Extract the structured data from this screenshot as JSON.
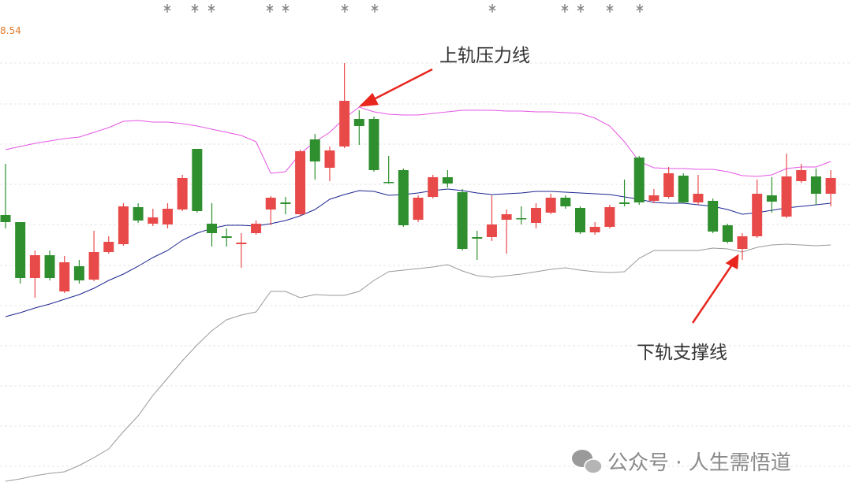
{
  "chart_data": {
    "type": "candlestick",
    "ylim": [
      7.947,
      8.54
    ],
    "yticks": [
      8.54
    ],
    "up_color": "#e84a4a",
    "down_color": "#2f8f2f",
    "open": [
      8.305,
      8.296,
      8.225,
      8.254,
      8.208,
      8.24,
      8.223,
      8.258,
      8.268,
      8.315,
      8.294,
      8.293,
      8.312,
      8.389,
      8.294,
      8.278,
      8.268,
      8.282,
      8.312,
      8.321,
      8.306,
      8.401,
      8.365,
      8.392,
      8.427,
      8.427,
      8.347,
      8.362,
      8.299,
      8.328,
      8.353,
      8.334,
      8.277,
      8.277,
      8.299,
      8.301,
      8.295,
      8.308,
      8.327,
      8.314,
      8.283,
      8.29,
      8.321,
      8.378,
      8.323,
      8.328,
      8.355,
      8.321,
      8.323,
      8.292,
      8.262,
      8.278,
      8.33,
      8.303,
      8.348,
      8.354,
      8.332
    ],
    "high": [
      8.37,
      8.296,
      8.26,
      8.26,
      8.253,
      8.248,
      8.285,
      8.278,
      8.32,
      8.32,
      8.313,
      8.32,
      8.356,
      8.389,
      8.32,
      8.288,
      8.282,
      8.298,
      8.329,
      8.328,
      8.388,
      8.408,
      8.392,
      8.498,
      8.438,
      8.43,
      8.38,
      8.364,
      8.33,
      8.356,
      8.362,
      8.338,
      8.285,
      8.33,
      8.312,
      8.316,
      8.32,
      8.332,
      8.33,
      8.316,
      8.296,
      8.318,
      8.35,
      8.38,
      8.338,
      8.366,
      8.358,
      8.356,
      8.326,
      8.294,
      8.282,
      8.35,
      8.353,
      8.383,
      8.37,
      8.364,
      8.362
    ],
    "low": [
      8.288,
      8.218,
      8.2,
      8.222,
      8.206,
      8.218,
      8.221,
      8.256,
      8.266,
      8.295,
      8.291,
      8.288,
      8.31,
      8.308,
      8.265,
      8.265,
      8.238,
      8.28,
      8.292,
      8.306,
      8.304,
      8.35,
      8.348,
      8.39,
      8.394,
      8.36,
      8.345,
      8.29,
      8.296,
      8.326,
      8.34,
      8.26,
      8.248,
      8.272,
      8.256,
      8.293,
      8.288,
      8.306,
      8.313,
      8.281,
      8.28,
      8.288,
      8.316,
      8.318,
      8.32,
      8.326,
      8.32,
      8.318,
      8.282,
      8.269,
      8.248,
      8.276,
      8.308,
      8.301,
      8.346,
      8.318,
      8.316
    ],
    "close": [
      8.296,
      8.225,
      8.254,
      8.225,
      8.245,
      8.222,
      8.258,
      8.271,
      8.316,
      8.298,
      8.302,
      8.313,
      8.352,
      8.31,
      8.282,
      8.276,
      8.27,
      8.294,
      8.327,
      8.319,
      8.386,
      8.373,
      8.387,
      8.45,
      8.418,
      8.362,
      8.346,
      8.292,
      8.327,
      8.353,
      8.345,
      8.262,
      8.275,
      8.293,
      8.306,
      8.3,
      8.314,
      8.327,
      8.316,
      8.283,
      8.29,
      8.315,
      8.319,
      8.321,
      8.33,
      8.358,
      8.321,
      8.332,
      8.284,
      8.271,
      8.278,
      8.332,
      8.322,
      8.354,
      8.362,
      8.332,
      8.352
    ],
    "series": [
      {
        "color": "#e455e4",
        "values": [
          8.388,
          8.392,
          8.396,
          8.399,
          8.402,
          8.404,
          8.41,
          8.416,
          8.424,
          8.425,
          8.423,
          8.423,
          8.421,
          8.418,
          8.414,
          8.41,
          8.406,
          8.398,
          8.358,
          8.36,
          8.383,
          8.398,
          8.41,
          8.428,
          8.442,
          8.436,
          8.433,
          8.432,
          8.432,
          8.434,
          8.436,
          8.438,
          8.438,
          8.438,
          8.437,
          8.437,
          8.436,
          8.436,
          8.435,
          8.434,
          8.428,
          8.418,
          8.398,
          8.373,
          8.365,
          8.364,
          8.364,
          8.363,
          8.363,
          8.36,
          8.355,
          8.354,
          8.356,
          8.364,
          8.366,
          8.366,
          8.373
        ]
      },
      {
        "color": "#1c2590",
        "values": [
          8.176,
          8.181,
          8.187,
          8.192,
          8.198,
          8.204,
          8.212,
          8.222,
          8.23,
          8.24,
          8.251,
          8.26,
          8.273,
          8.282,
          8.288,
          8.292,
          8.292,
          8.291,
          8.294,
          8.298,
          8.304,
          8.312,
          8.325,
          8.331,
          8.336,
          8.335,
          8.33,
          8.331,
          8.333,
          8.336,
          8.338,
          8.336,
          8.333,
          8.331,
          8.332,
          8.333,
          8.335,
          8.335,
          8.334,
          8.333,
          8.332,
          8.331,
          8.328,
          8.325,
          8.321,
          8.32,
          8.32,
          8.318,
          8.316,
          8.312,
          8.306,
          8.308,
          8.311,
          8.314,
          8.316,
          8.318,
          8.32
        ]
      },
      {
        "color": "#9a9a9a",
        "values": [
          7.967,
          7.97,
          7.974,
          7.977,
          7.979,
          7.987,
          7.997,
          8.008,
          8.03,
          8.05,
          8.076,
          8.098,
          8.12,
          8.14,
          8.158,
          8.172,
          8.178,
          8.182,
          8.208,
          8.208,
          8.2,
          8.204,
          8.203,
          8.203,
          8.208,
          8.222,
          8.233,
          8.235,
          8.237,
          8.239,
          8.242,
          8.234,
          8.228,
          8.226,
          8.228,
          8.23,
          8.233,
          8.236,
          8.238,
          8.235,
          8.233,
          8.232,
          8.233,
          8.25,
          8.26,
          8.26,
          8.26,
          8.26,
          8.263,
          8.262,
          8.258,
          8.264,
          8.267,
          8.268,
          8.267,
          8.266,
          8.267
        ]
      }
    ],
    "annotations": [
      {
        "text": "上轨压力线"
      },
      {
        "text": "下轨支撑线"
      }
    ],
    "watermark": "公众号 · 人生需悟道"
  }
}
